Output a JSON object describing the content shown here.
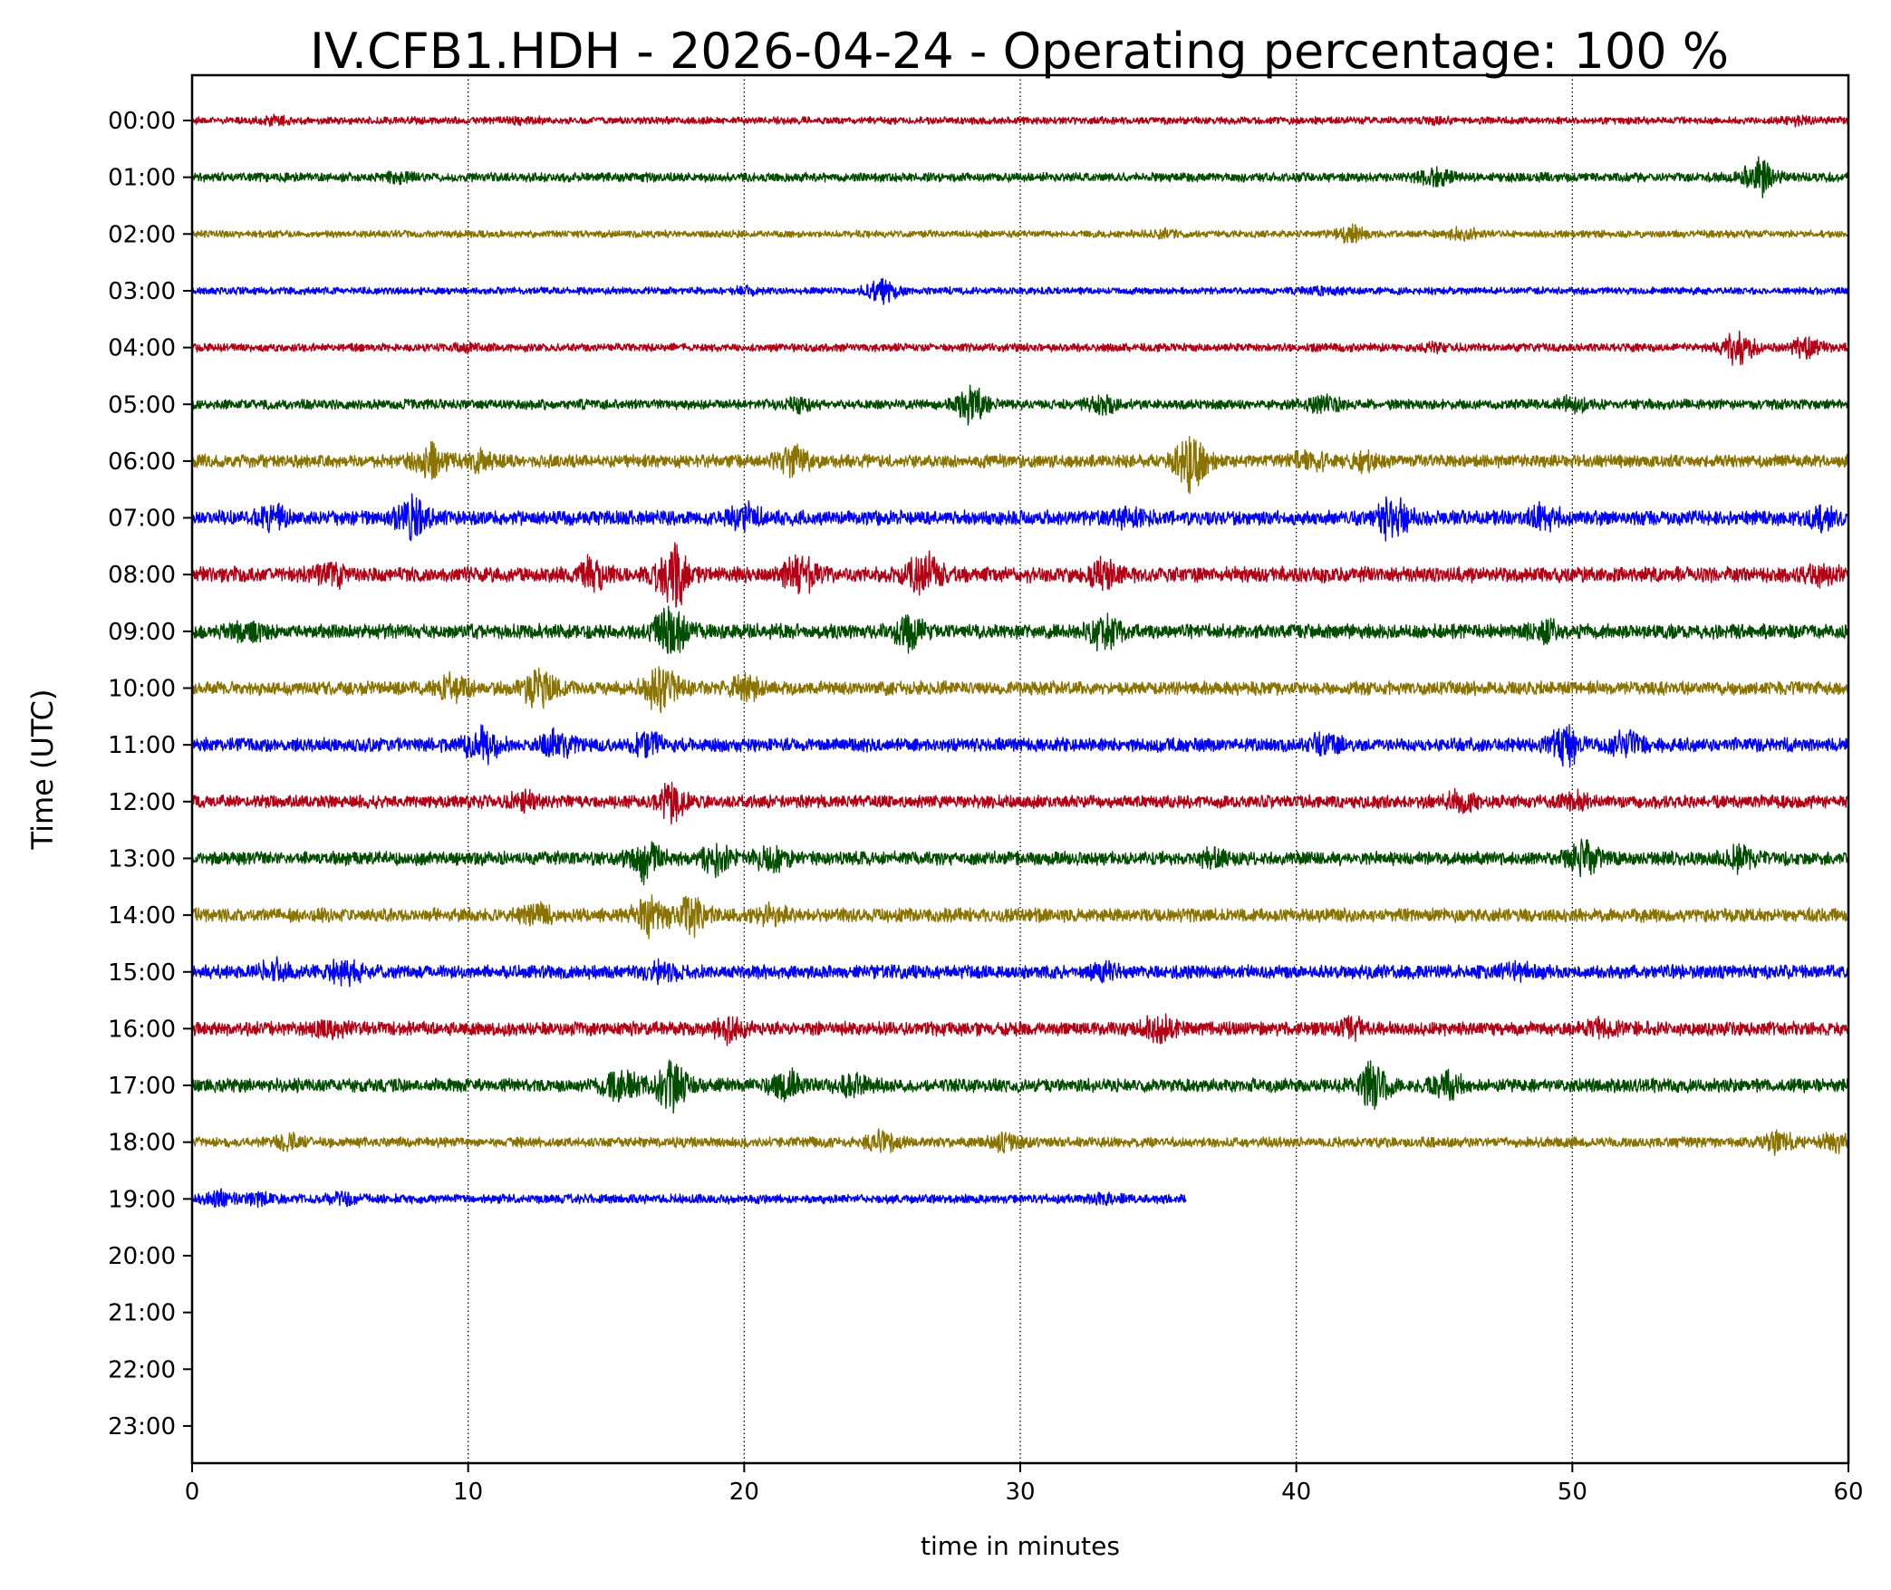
{
  "chart_data": {
    "type": "line",
    "title": "IV.CFB1.HDH - 2026-04-24 - Operating percentage: 100 %",
    "xlabel": "time in minutes",
    "ylabel": "Time (UTC)",
    "xlim": [
      0,
      60
    ],
    "x_ticks": [
      "0",
      "10",
      "20",
      "30",
      "40",
      "50",
      "60"
    ],
    "y_ticks": [
      "00:00",
      "01:00",
      "02:00",
      "03:00",
      "04:00",
      "05:00",
      "06:00",
      "07:00",
      "08:00",
      "09:00",
      "10:00",
      "11:00",
      "12:00",
      "13:00",
      "14:00",
      "15:00",
      "16:00",
      "17:00",
      "18:00",
      "19:00",
      "20:00",
      "21:00",
      "22:00",
      "23:00"
    ],
    "grid": "vertical dotted lines at x ticks",
    "colors": [
      "#b30015",
      "#004d00",
      "#8a7300",
      "#0000ff"
    ],
    "series": [
      {
        "hour": "00:00",
        "end_minute": 60,
        "amplitude": 0.16,
        "bursts": [
          {
            "t": 3,
            "a": 1.8
          },
          {
            "t": 12,
            "a": 1.5
          },
          {
            "t": 45,
            "a": 1.4
          },
          {
            "t": 58,
            "a": 1.6
          }
        ]
      },
      {
        "hour": "01:00",
        "end_minute": 60,
        "amplitude": 0.2,
        "bursts": [
          {
            "t": 7.5,
            "a": 1.8
          },
          {
            "t": 45,
            "a": 2.6
          },
          {
            "t": 56.8,
            "a": 4.5
          }
        ]
      },
      {
        "hour": "02:00",
        "end_minute": 60,
        "amplitude": 0.16,
        "bursts": [
          {
            "t": 35,
            "a": 1.8
          },
          {
            "t": 42,
            "a": 3.0
          },
          {
            "t": 46,
            "a": 2.2
          }
        ]
      },
      {
        "hour": "03:00",
        "end_minute": 60,
        "amplitude": 0.16,
        "bursts": [
          {
            "t": 20,
            "a": 1.7
          },
          {
            "t": 25,
            "a": 3.8
          },
          {
            "t": 41,
            "a": 1.6
          }
        ]
      },
      {
        "hour": "04:00",
        "end_minute": 60,
        "amplitude": 0.18,
        "bursts": [
          {
            "t": 10,
            "a": 1.5
          },
          {
            "t": 45,
            "a": 1.7
          },
          {
            "t": 56,
            "a": 4.8
          },
          {
            "t": 58.5,
            "a": 3.2
          }
        ]
      },
      {
        "hour": "05:00",
        "end_minute": 60,
        "amplitude": 0.22,
        "bursts": [
          {
            "t": 22,
            "a": 2.0
          },
          {
            "t": 28.2,
            "a": 4.2
          },
          {
            "t": 33,
            "a": 2.3
          },
          {
            "t": 41,
            "a": 2.5
          },
          {
            "t": 50,
            "a": 2.0
          }
        ]
      },
      {
        "hour": "06:00",
        "end_minute": 60,
        "amplitude": 0.28,
        "bursts": [
          {
            "t": 8.6,
            "a": 3.3
          },
          {
            "t": 10.5,
            "a": 2.2
          },
          {
            "t": 21.8,
            "a": 3.0
          },
          {
            "t": 36.2,
            "a": 5.0
          },
          {
            "t": 40.5,
            "a": 2.2
          },
          {
            "t": 42.5,
            "a": 2.0
          }
        ]
      },
      {
        "hour": "07:00",
        "end_minute": 60,
        "amplitude": 0.32,
        "bursts": [
          {
            "t": 3,
            "a": 2.3
          },
          {
            "t": 8,
            "a": 3.8
          },
          {
            "t": 20,
            "a": 2.4
          },
          {
            "t": 34,
            "a": 2.0
          },
          {
            "t": 43.5,
            "a": 3.5
          },
          {
            "t": 49,
            "a": 2.2
          },
          {
            "t": 59,
            "a": 2.0
          }
        ]
      },
      {
        "hour": "08:00",
        "end_minute": 60,
        "amplitude": 0.34,
        "bursts": [
          {
            "t": 5,
            "a": 2.2
          },
          {
            "t": 14.5,
            "a": 2.6
          },
          {
            "t": 17.4,
            "a": 4.8
          },
          {
            "t": 22,
            "a": 3.0
          },
          {
            "t": 26.5,
            "a": 3.4
          },
          {
            "t": 33,
            "a": 2.4
          },
          {
            "t": 59,
            "a": 2.0
          }
        ]
      },
      {
        "hour": "09:00",
        "end_minute": 60,
        "amplitude": 0.32,
        "bursts": [
          {
            "t": 2,
            "a": 2.0
          },
          {
            "t": 17.3,
            "a": 4.4
          },
          {
            "t": 26,
            "a": 2.8
          },
          {
            "t": 33,
            "a": 3.0
          },
          {
            "t": 49,
            "a": 2.0
          }
        ]
      },
      {
        "hour": "10:00",
        "end_minute": 60,
        "amplitude": 0.3,
        "bursts": [
          {
            "t": 9.5,
            "a": 2.6
          },
          {
            "t": 12.5,
            "a": 3.5
          },
          {
            "t": 17,
            "a": 4.0
          },
          {
            "t": 20,
            "a": 2.2
          }
        ]
      },
      {
        "hour": "11:00",
        "end_minute": 60,
        "amplitude": 0.3,
        "bursts": [
          {
            "t": 10.5,
            "a": 3.4
          },
          {
            "t": 13.2,
            "a": 2.6
          },
          {
            "t": 16.5,
            "a": 2.4
          },
          {
            "t": 41,
            "a": 2.0
          },
          {
            "t": 49.8,
            "a": 3.6
          },
          {
            "t": 52,
            "a": 2.5
          }
        ]
      },
      {
        "hour": "12:00",
        "end_minute": 60,
        "amplitude": 0.28,
        "bursts": [
          {
            "t": 12,
            "a": 2.2
          },
          {
            "t": 17.4,
            "a": 3.5
          },
          {
            "t": 46,
            "a": 2.2
          },
          {
            "t": 50,
            "a": 2.0
          }
        ]
      },
      {
        "hour": "13:00",
        "end_minute": 60,
        "amplitude": 0.3,
        "bursts": [
          {
            "t": 16.5,
            "a": 3.8
          },
          {
            "t": 19,
            "a": 2.6
          },
          {
            "t": 21,
            "a": 2.4
          },
          {
            "t": 37,
            "a": 1.8
          },
          {
            "t": 50.5,
            "a": 3.0
          },
          {
            "t": 56,
            "a": 2.2
          }
        ]
      },
      {
        "hour": "14:00",
        "end_minute": 60,
        "amplitude": 0.3,
        "bursts": [
          {
            "t": 12.5,
            "a": 2.2
          },
          {
            "t": 16.5,
            "a": 3.2
          },
          {
            "t": 18,
            "a": 3.8
          },
          {
            "t": 21,
            "a": 2.0
          }
        ]
      },
      {
        "hour": "15:00",
        "end_minute": 60,
        "amplitude": 0.3,
        "bursts": [
          {
            "t": 3,
            "a": 2.2
          },
          {
            "t": 5.5,
            "a": 2.4
          },
          {
            "t": 17,
            "a": 2.0
          },
          {
            "t": 33,
            "a": 1.8
          },
          {
            "t": 48,
            "a": 1.8
          }
        ]
      },
      {
        "hour": "16:00",
        "end_minute": 60,
        "amplitude": 0.3,
        "bursts": [
          {
            "t": 5,
            "a": 2.0
          },
          {
            "t": 19.5,
            "a": 2.4
          },
          {
            "t": 35,
            "a": 2.3
          },
          {
            "t": 42,
            "a": 2.0
          },
          {
            "t": 51,
            "a": 2.1
          }
        ]
      },
      {
        "hour": "17:00",
        "end_minute": 60,
        "amplitude": 0.3,
        "bursts": [
          {
            "t": 15.5,
            "a": 3.0
          },
          {
            "t": 17.3,
            "a": 4.6
          },
          {
            "t": 21.5,
            "a": 2.8
          },
          {
            "t": 24,
            "a": 2.2
          },
          {
            "t": 42.8,
            "a": 3.8
          },
          {
            "t": 45.5,
            "a": 2.6
          }
        ]
      },
      {
        "hour": "18:00",
        "end_minute": 60,
        "amplitude": 0.22,
        "bursts": [
          {
            "t": 3.5,
            "a": 2.0
          },
          {
            "t": 25,
            "a": 2.6
          },
          {
            "t": 29.5,
            "a": 2.6
          },
          {
            "t": 57.5,
            "a": 2.6
          },
          {
            "t": 59.5,
            "a": 2.4
          }
        ]
      },
      {
        "hour": "19:00",
        "end_minute": 36,
        "amplitude": 0.2,
        "bursts": [
          {
            "t": 1,
            "a": 2.6
          },
          {
            "t": 2.5,
            "a": 2.0
          },
          {
            "t": 5.5,
            "a": 2.0
          },
          {
            "t": 33,
            "a": 1.5
          }
        ]
      }
    ]
  }
}
